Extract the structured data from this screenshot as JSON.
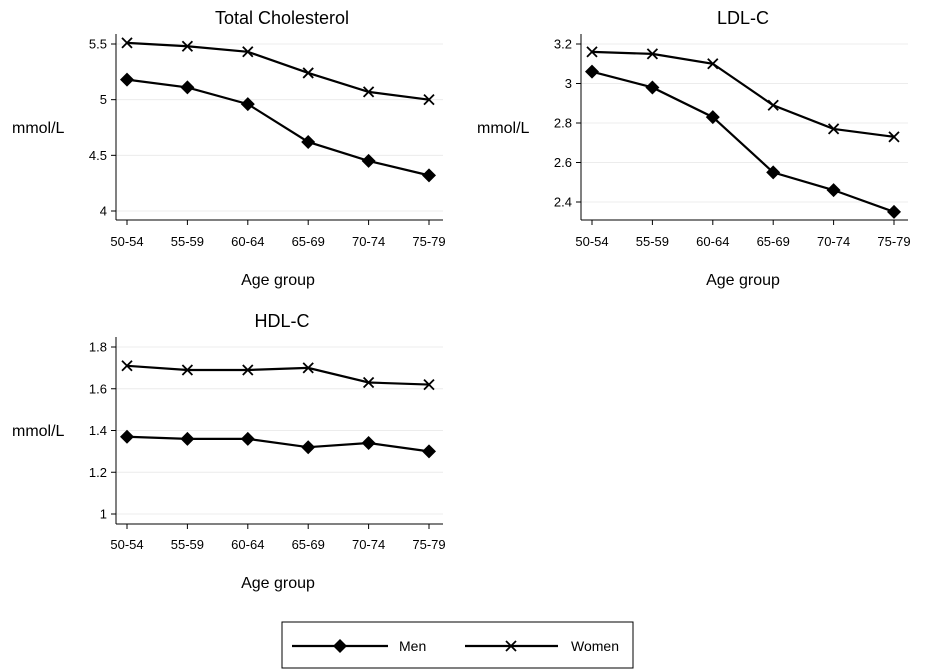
{
  "chart_data": [
    {
      "type": "line",
      "title": "Total Cholesterol",
      "ylabel": "mmol/L",
      "xlabel": "Age group",
      "categories": [
        "50-54",
        "55-59",
        "60-64",
        "65-69",
        "70-74",
        "75-79"
      ],
      "ylim": [
        4,
        5.5
      ],
      "yticks": [
        4,
        4.5,
        5,
        5.5
      ],
      "ytick_labels": [
        "4",
        "4.5",
        "5",
        "5.5"
      ],
      "grid": true,
      "series": [
        {
          "name": "Men",
          "marker": "diamond",
          "values": [
            5.18,
            5.11,
            4.96,
            4.62,
            4.45,
            4.32
          ]
        },
        {
          "name": "Women",
          "marker": "x",
          "values": [
            5.51,
            5.48,
            5.43,
            5.24,
            5.07,
            5.0
          ]
        }
      ]
    },
    {
      "type": "line",
      "title": "LDL-C",
      "ylabel": "mmol/L",
      "xlabel": "Age group",
      "categories": [
        "50-54",
        "55-59",
        "60-64",
        "65-69",
        "70-74",
        "75-79"
      ],
      "ylim": [
        2.4,
        3.2
      ],
      "yticks": [
        2.4,
        2.6,
        2.8,
        3.0,
        3.2
      ],
      "ytick_labels": [
        "2.4",
        "2.6",
        "2.8",
        "3",
        "3.2"
      ],
      "grid": true,
      "series": [
        {
          "name": "Men",
          "marker": "diamond",
          "values": [
            3.06,
            2.98,
            2.83,
            2.55,
            2.46,
            2.35
          ]
        },
        {
          "name": "Women",
          "marker": "x",
          "values": [
            3.16,
            3.15,
            3.1,
            2.89,
            2.77,
            2.73
          ]
        }
      ]
    },
    {
      "type": "line",
      "title": "HDL-C",
      "ylabel": "mmol/L",
      "xlabel": "Age group",
      "categories": [
        "50-54",
        "55-59",
        "60-64",
        "65-69",
        "70-74",
        "75-79"
      ],
      "ylim": [
        1,
        1.8
      ],
      "yticks": [
        1,
        1.2,
        1.4,
        1.6,
        1.8
      ],
      "ytick_labels": [
        "1",
        "1.2",
        "1.4",
        "1.6",
        "1.8"
      ],
      "grid": true,
      "series": [
        {
          "name": "Men",
          "marker": "diamond",
          "values": [
            1.37,
            1.36,
            1.36,
            1.32,
            1.34,
            1.3
          ]
        },
        {
          "name": "Women",
          "marker": "x",
          "values": [
            1.71,
            1.69,
            1.69,
            1.7,
            1.63,
            1.62
          ]
        }
      ]
    }
  ],
  "legend": {
    "placement": "bottom",
    "entries": [
      {
        "label": "Men",
        "marker": "diamond"
      },
      {
        "label": "Women",
        "marker": "x"
      }
    ]
  }
}
